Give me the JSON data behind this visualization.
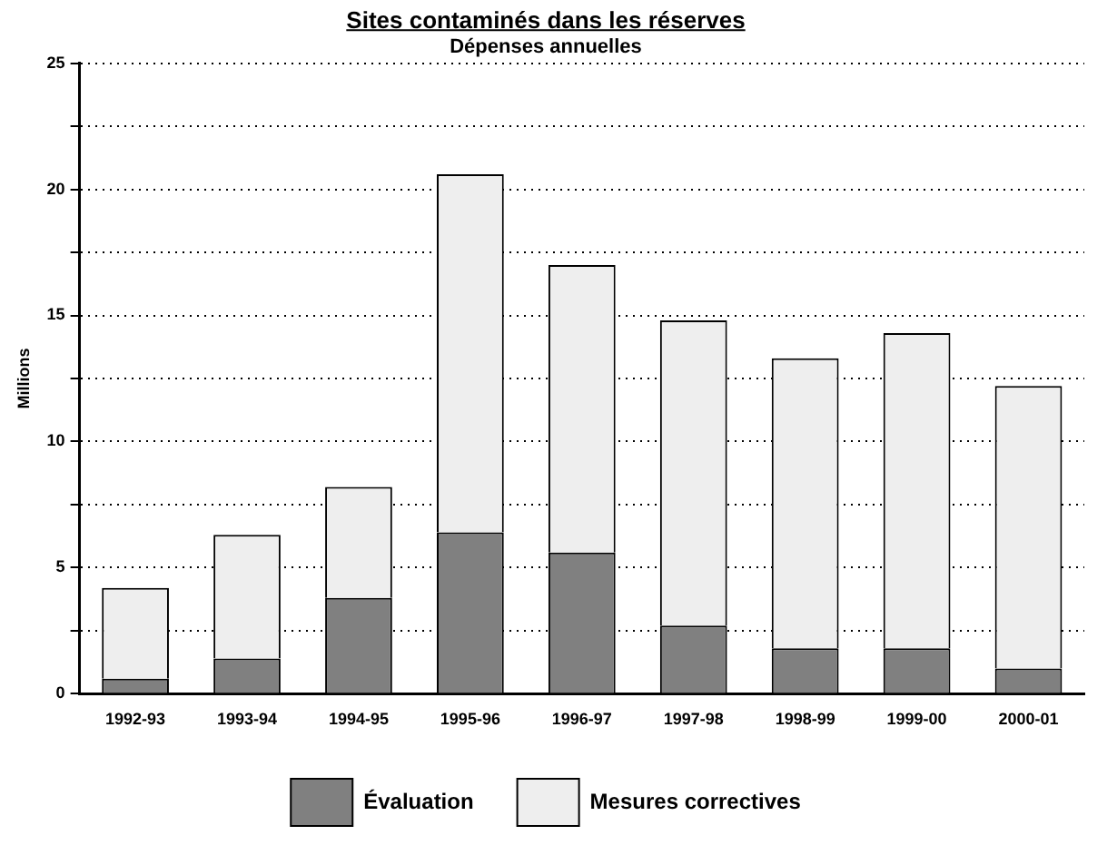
{
  "chart_data": {
    "type": "bar",
    "title": "Sites contaminés dans les réserves",
    "subtitle": "Dépenses annuelles",
    "ylabel": "Millions",
    "categories": [
      "1992-93",
      "1993-94",
      "1994-95",
      "1995-96",
      "1996-97",
      "1997-98",
      "1998-99",
      "1999-00",
      "2000-01"
    ],
    "stacked": true,
    "series": [
      {
        "name": "Évaluation",
        "color": "#808080",
        "values": [
          0.6,
          1.4,
          3.8,
          6.4,
          5.6,
          2.7,
          1.8,
          1.8,
          1.0
        ]
      },
      {
        "name": "Mesures correctives",
        "color": "#eeeeee",
        "values": [
          3.6,
          4.9,
          4.4,
          14.2,
          11.4,
          12.1,
          11.5,
          12.5,
          11.2
        ]
      }
    ],
    "ylim": [
      0,
      25
    ],
    "yticks": [
      0,
      {
        "value": 2.5,
        "label": null
      },
      5,
      {
        "value": 7.5,
        "label": null
      },
      10,
      {
        "value": 12.5,
        "label": null
      },
      15,
      {
        "value": 17.5,
        "label": null
      },
      20,
      {
        "value": 22.5,
        "label": null
      },
      25
    ],
    "grid": "y",
    "legend": "bottom"
  }
}
